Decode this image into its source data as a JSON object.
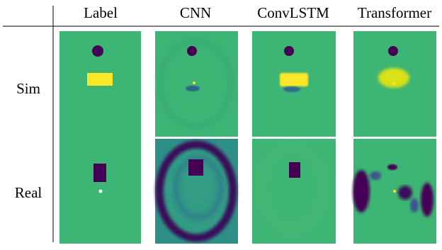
{
  "header": {
    "columns": [
      "Label",
      "CNN",
      "ConvLSTM",
      "Transformer"
    ]
  },
  "rows": [
    "Sim",
    "Real"
  ]
}
